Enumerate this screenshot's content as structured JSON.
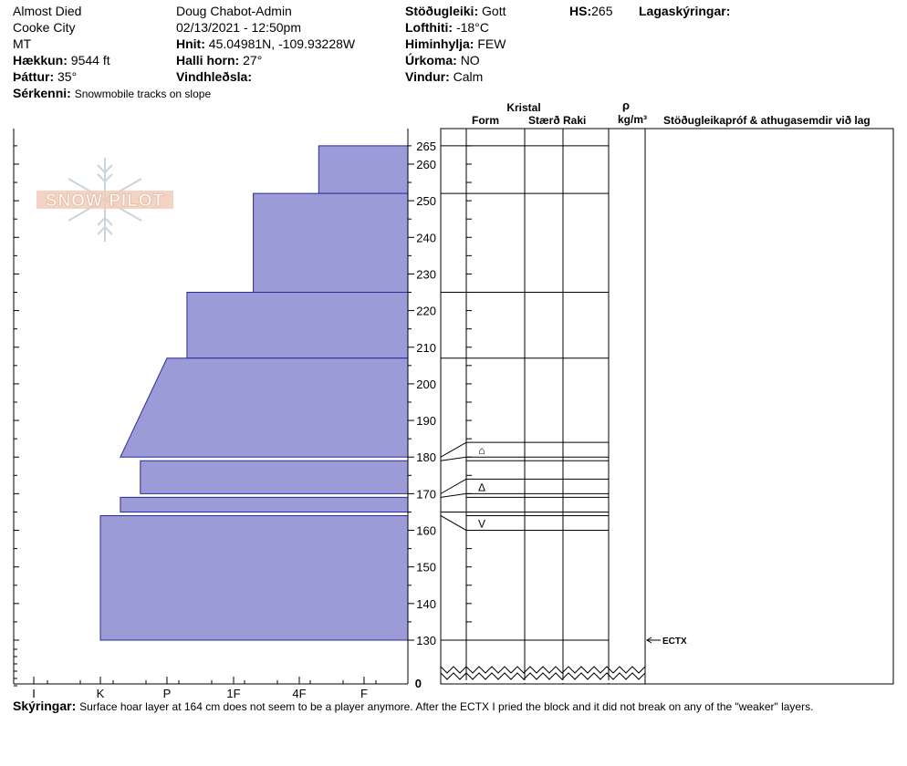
{
  "header": {
    "col1": [
      "Almost Died",
      "Cooke City",
      "MT"
    ],
    "elevation_label": "Hækkun:",
    "elevation_value": "9544 ft",
    "aspect_label": "Þáttur:",
    "aspect_value": "35°",
    "features_label": "Sérkenni:",
    "features_value": "Snowmobile tracks on slope",
    "observer": "Doug Chabot-Admin",
    "datetime": "02/13/2021 - 12:50pm",
    "coords_label": "Hnit:",
    "coords_value": "45.04981N, -109.93228W",
    "slope_label": "Halli horn:",
    "slope_value": "27°",
    "wind_loading_label": "Vindhleðsla:",
    "wind_loading_value": "",
    "stability_label": "Stöðugleiki:",
    "stability_value": "Gott",
    "air_temp_label": "Lofthiti:",
    "air_temp_value": "-18°C",
    "sky_label": "Himinhylja:",
    "sky_value": "FEW",
    "precip_label": "Úrkoma:",
    "precip_value": "NO",
    "wind_label": "Vindur:",
    "wind_value": "Calm",
    "hs_label": "HS:",
    "hs_value": "265",
    "layer_notes_label": "Lagaskýringar:"
  },
  "columns": {
    "crystal": "Kristal",
    "form": "Form",
    "size": "Stærð",
    "moisture": "Raki",
    "density_symbol": "ρ",
    "density_unit": "kg/m³",
    "stability_tests": "Stöðugleikapróf & athugasemdir við lag"
  },
  "notes_label": "Skýringar:",
  "notes_text": "Surface hoar layer at 164 cm does not seem to be a player anymore. After the ECTX I pried the block and it did not break on any of the \"weaker\" layers.",
  "logo": {
    "text": "SNOW PILOT"
  },
  "chart_data": {
    "type": "bar",
    "x_hardness_ticks": [
      "I",
      "K",
      "P",
      "1F",
      "4F",
      "F"
    ],
    "height_ticks": [
      130,
      140,
      150,
      160,
      170,
      180,
      190,
      200,
      210,
      220,
      230,
      240,
      250,
      260,
      265
    ],
    "height_bottom_label": "0",
    "hardness_fill": "#9b9bd8",
    "layers": [
      {
        "top": 265,
        "bottom": 252,
        "hardness_top": 0.7,
        "hardness_bottom": 0.7
      },
      {
        "top": 252,
        "bottom": 225,
        "hardness_top": 1.7,
        "hardness_bottom": 1.7
      },
      {
        "top": 225,
        "bottom": 207,
        "hardness_top": 2.7,
        "hardness_bottom": 2.7
      },
      {
        "top": 207,
        "bottom": 180,
        "hardness_top": 3.0,
        "hardness_bottom": 3.7
      },
      {
        "top": 179,
        "bottom": 170,
        "hardness_top": 3.4,
        "hardness_bottom": 3.4
      },
      {
        "top": 169,
        "bottom": 165,
        "hardness_top": 3.7,
        "hardness_bottom": 3.7
      },
      {
        "top": 164,
        "bottom": 130,
        "hardness_top": 4.0,
        "hardness_bottom": 4.0
      }
    ],
    "boundaries": [
      265,
      252,
      225,
      207,
      184,
      180,
      179,
      174,
      170,
      169,
      165,
      164,
      160,
      130
    ],
    "grain_symbols": [
      {
        "height": 182,
        "symbol": "⌂"
      },
      {
        "height": 172,
        "symbol": "∆"
      },
      {
        "height": 162,
        "symbol": "V"
      }
    ],
    "stability_tests": [
      {
        "height": 130,
        "label": "ECTX"
      }
    ]
  }
}
